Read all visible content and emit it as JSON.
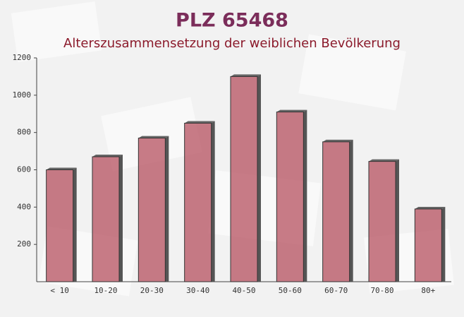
{
  "chart_data": {
    "type": "bar",
    "title": "PLZ 65468",
    "subtitle": "Alterszusammensetzung der weiblichen Bevölkerung",
    "categories": [
      "< 10",
      "10-20",
      "20-30",
      "30-40",
      "40-50",
      "50-60",
      "60-70",
      "70-80",
      "80+"
    ],
    "values": [
      600,
      670,
      770,
      850,
      1100,
      910,
      750,
      645,
      390
    ],
    "color": "#b5505f",
    "ylim": [
      0,
      1200
    ],
    "yticks": [
      200,
      400,
      600,
      800,
      1000,
      1200
    ]
  }
}
